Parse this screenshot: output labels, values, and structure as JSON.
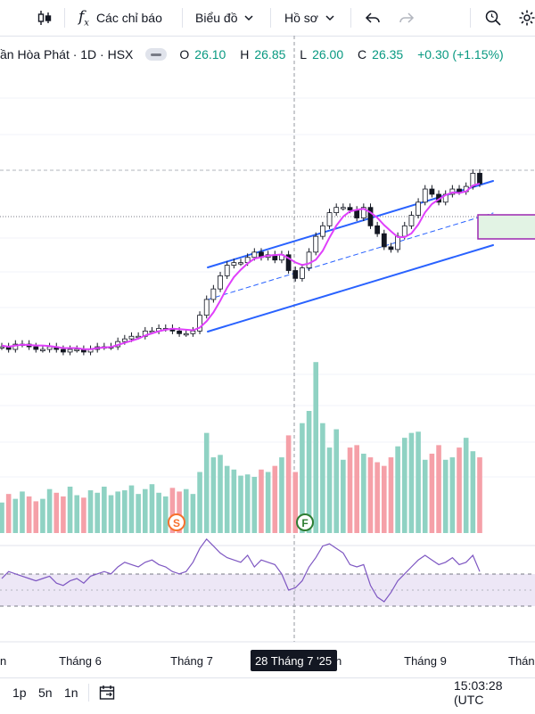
{
  "toolbar": {
    "indicators_label": "Các chỉ báo",
    "chart_type_label": "Biểu đồ",
    "profile_label": "Hồ sơ"
  },
  "legend": {
    "symbol": "ần Hòa Phát · 1D · HSX",
    "open_key": "O",
    "open": "26.10",
    "high_key": "H",
    "high": "26.85",
    "low_key": "L",
    "low": "26.00",
    "close_key": "C",
    "close": "26.35",
    "change": "+0.30 (+1.15%)"
  },
  "markers": {
    "s": "S",
    "f": "F"
  },
  "x_axis": {
    "ticks": [
      "n",
      "Tháng 6",
      "Tháng 7",
      "Tháng 9",
      "Tháng"
    ],
    "crosshair_label": "28 Tháng 7 '25",
    "crosshair_after": "n"
  },
  "bottom": {
    "ranges": [
      "1p",
      "5n",
      "1n"
    ],
    "clock": "15:03:28 (UTC"
  },
  "colors": {
    "up": "#089981",
    "down": "#f23645",
    "volume_up": "#8fd2c3",
    "volume_down": "#f5a0a8",
    "ma": "#e040fb",
    "channel": "#2962ff",
    "rsi": "#7e57c2",
    "rsi_band": "#ede7f6",
    "box_fill": "#e2f3e4",
    "box_border": "#9c27b0"
  },
  "chart_data": {
    "type": "candlestick",
    "price": [
      25.4,
      25.3,
      25.5,
      25.5,
      25.4,
      25.3,
      25.3,
      25.4,
      25.3,
      25.2,
      25.3,
      25.3,
      25.2,
      25.3,
      25.4,
      25.4,
      25.4,
      25.6,
      25.7,
      25.8,
      25.8,
      26.0,
      26.0,
      26.1,
      26.1,
      26.0,
      25.9,
      25.9,
      26.0,
      26.6,
      27.2,
      27.6,
      28.1,
      28.5,
      28.6,
      28.6,
      28.8,
      29.0,
      28.8,
      28.9,
      28.7,
      28.9,
      28.3,
      28.0,
      28.4,
      29.0,
      29.6,
      30.0,
      30.5,
      30.7,
      30.7,
      30.6,
      30.3,
      30.7,
      30.0,
      29.7,
      29.2,
      29.1,
      29.6,
      30.0,
      30.4,
      30.9,
      31.4,
      31.2,
      30.9,
      31.2,
      31.4,
      31.3,
      31.5,
      32.0,
      31.6
    ],
    "volume": [
      0.25,
      0.32,
      0.28,
      0.34,
      0.3,
      0.26,
      0.28,
      0.36,
      0.33,
      0.3,
      0.38,
      0.31,
      0.29,
      0.35,
      0.33,
      0.38,
      0.31,
      0.34,
      0.35,
      0.39,
      0.32,
      0.36,
      0.4,
      0.33,
      0.3,
      0.37,
      0.34,
      0.36,
      0.32,
      0.5,
      0.82,
      0.62,
      0.64,
      0.55,
      0.52,
      0.47,
      0.48,
      0.46,
      0.52,
      0.5,
      0.55,
      0.62,
      0.8,
      0.5,
      0.9,
      1.0,
      1.4,
      0.9,
      0.7,
      0.85,
      0.6,
      0.7,
      0.72,
      0.65,
      0.62,
      0.58,
      0.55,
      0.62,
      0.71,
      0.78,
      0.82,
      0.83,
      0.6,
      0.65,
      0.72,
      0.6,
      0.62,
      0.7,
      0.78,
      0.67,
      0.62
    ],
    "rsi": [
      55,
      58,
      57,
      56,
      55,
      54,
      55,
      56,
      53,
      52,
      54,
      55,
      53,
      56,
      57,
      58,
      57,
      60,
      62,
      61,
      60,
      62,
      63,
      61,
      60,
      58,
      57,
      58,
      62,
      68,
      72,
      69,
      66,
      64,
      63,
      62,
      65,
      60,
      63,
      62,
      61,
      57,
      50,
      51,
      54,
      60,
      64,
      69,
      70,
      68,
      66,
      61,
      60,
      61,
      52,
      47,
      45,
      49,
      54,
      57,
      60,
      63,
      65,
      63,
      61,
      62,
      64,
      61,
      62,
      65,
      58
    ],
    "volume_markers": [
      {
        "label": "S",
        "at": 0.33
      },
      {
        "label": "F",
        "at": 0.57
      }
    ]
  }
}
